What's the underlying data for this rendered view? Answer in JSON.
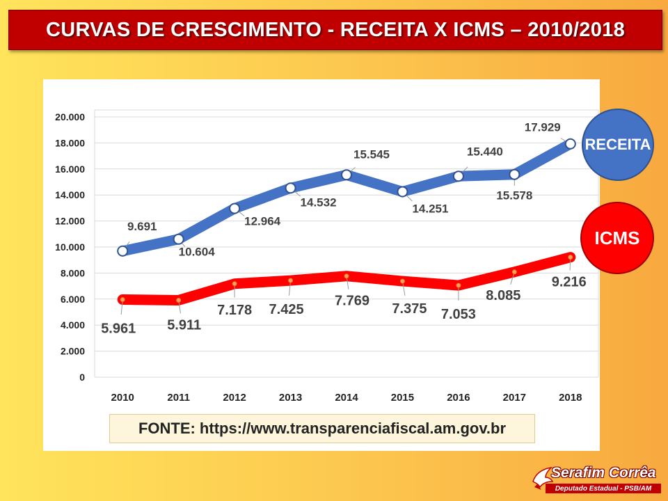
{
  "header": {
    "title": "CURVAS DE CRESCIMENTO - RECEITA X ICMS – 2010/2018"
  },
  "source": {
    "text": "FONTE: https://www.transparenciafiscal.am.gov.br"
  },
  "badges": {
    "receita": "RECEITA",
    "icms": "ICMS"
  },
  "logo": {
    "name": "Serafim Corrêa",
    "subtitle": "Deputado Estadual - PSB/AM"
  },
  "colors": {
    "receita": "#4472c4",
    "icms": "#ff0000",
    "title_bg": "#c00000"
  },
  "chart_data": {
    "type": "line",
    "title": "",
    "xlabel": "",
    "ylabel": "",
    "categories": [
      "2010",
      "2011",
      "2012",
      "2013",
      "2014",
      "2015",
      "2016",
      "2017",
      "2018"
    ],
    "ylim": [
      0,
      20000
    ],
    "yticks": [
      "0",
      "2.000",
      "4.000",
      "6.000",
      "8.000",
      "10.000",
      "12.000",
      "14.000",
      "16.000",
      "18.000",
      "20.000"
    ],
    "grid": true,
    "series": [
      {
        "name": "RECEITA",
        "values": [
          9691,
          10604,
          12964,
          14532,
          15545,
          14251,
          15440,
          15578,
          17929
        ],
        "labels": [
          "9.691",
          "10.604",
          "12.964",
          "14.532",
          "15.545",
          "14.251",
          "15.440",
          "15.578",
          "17.929"
        ]
      },
      {
        "name": "ICMS",
        "values": [
          5961,
          5911,
          7178,
          7425,
          7769,
          7375,
          7053,
          8085,
          9216
        ],
        "labels": [
          "5.961",
          "5.911",
          "7.178",
          "7.425",
          "7.769",
          "7.375",
          "7.053",
          "8.085",
          "9.216"
        ]
      }
    ]
  }
}
